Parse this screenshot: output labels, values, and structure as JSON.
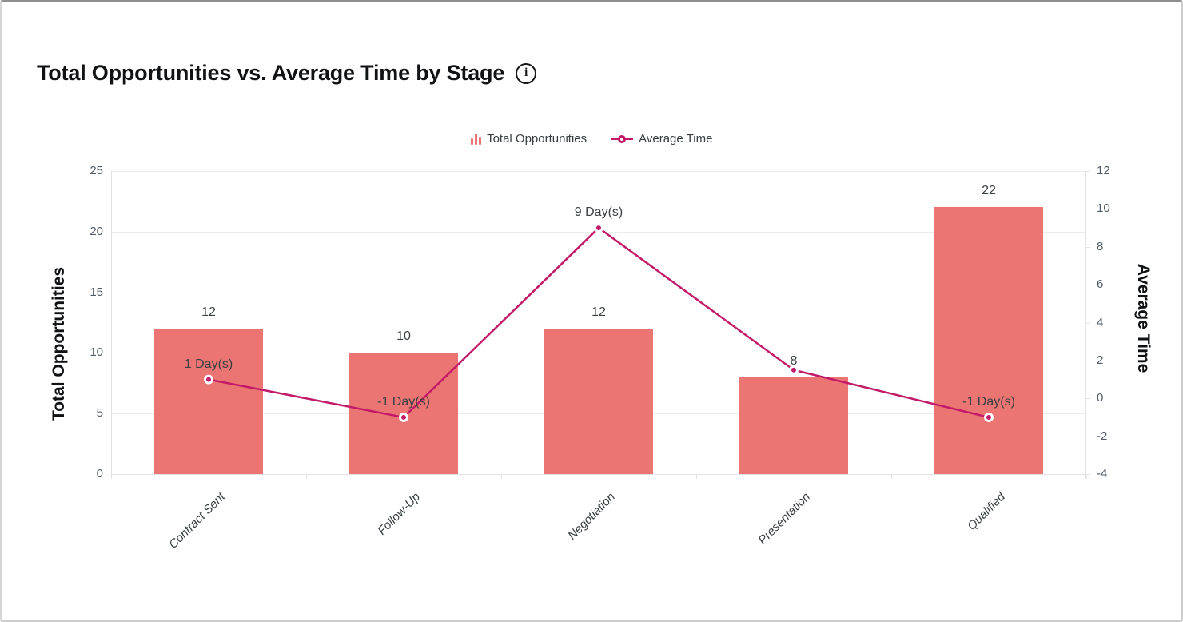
{
  "header": {
    "title": "Total Opportunities vs. Average Time by Stage",
    "info_glyph": "i"
  },
  "legend": {
    "items": [
      {
        "label": "Total Opportunities",
        "type": "bar",
        "color": "#ea7572"
      },
      {
        "label": "Average Time",
        "type": "line",
        "color": "#c21a68"
      }
    ]
  },
  "chart_data": {
    "type": "bar",
    "subtype": "combo bar + line, dual y-axis",
    "title": "Total Opportunities vs. Average Time by Stage",
    "categories": [
      "Contract Sent",
      "Follow-Up",
      "Negotiation",
      "Presentation",
      "Qualified"
    ],
    "series": [
      {
        "name": "Total Opportunities",
        "type": "bar",
        "axis": "left",
        "values": [
          12,
          10,
          12,
          8,
          22
        ],
        "data_labels": [
          "12",
          "10",
          "12",
          "8",
          "22"
        ]
      },
      {
        "name": "Average Time",
        "type": "line",
        "axis": "right",
        "values": [
          1,
          -1,
          9,
          1.5,
          -1
        ],
        "data_labels": [
          "1 Day(s)",
          "-1 Day(s)",
          "9 Day(s)",
          "",
          "-1 Day(s)"
        ]
      }
    ],
    "left_axis": {
      "title": "Total Opportunities",
      "min": 0,
      "max": 25,
      "ticks": [
        25,
        20,
        15,
        10,
        5,
        0
      ]
    },
    "right_axis": {
      "title": "Average Time",
      "min": -4,
      "max": 12,
      "ticks": [
        12,
        10,
        8,
        6,
        4,
        2,
        0,
        -2,
        -4
      ]
    },
    "legend_position": "top",
    "grid": true,
    "colors": {
      "bar": "#ea7572",
      "line": "#c21a68",
      "marker_fill": "#c21a68",
      "marker_ring": "#ffffff",
      "grid": "#ededed",
      "axis_line": "#e3e3e3",
      "tick_text": "#4f5b67",
      "label_text": "#3b4043"
    }
  }
}
